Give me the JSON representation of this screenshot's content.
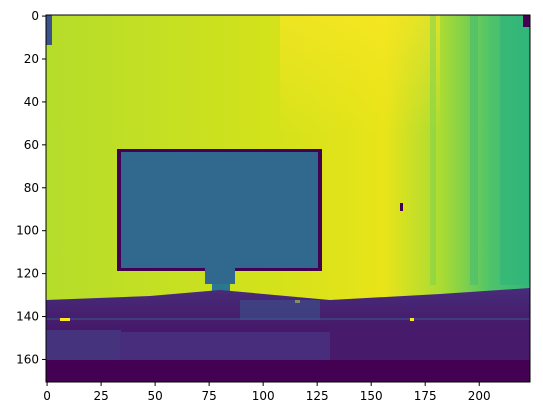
{
  "image": {
    "kind": "depth-map heatmap",
    "colormap": "viridis",
    "x_extent": [
      0,
      224
    ],
    "y_extent": [
      0,
      171
    ]
  },
  "axes": {
    "x_ticks": [
      "0",
      "25",
      "50",
      "75",
      "100",
      "125",
      "150",
      "175",
      "200"
    ],
    "y_ticks": [
      "0",
      "20",
      "40",
      "60",
      "80",
      "100",
      "120",
      "140",
      "160"
    ]
  },
  "colors": {
    "yellow": "#f3e61f",
    "light_green": "#b9de28",
    "green": "#7ad151",
    "teal_green": "#35b779",
    "teal": "#2a788e",
    "blue_teal": "#31688e",
    "dark_blue": "#3b528b",
    "purple": "#46337e",
    "dark_purple": "#440154"
  }
}
